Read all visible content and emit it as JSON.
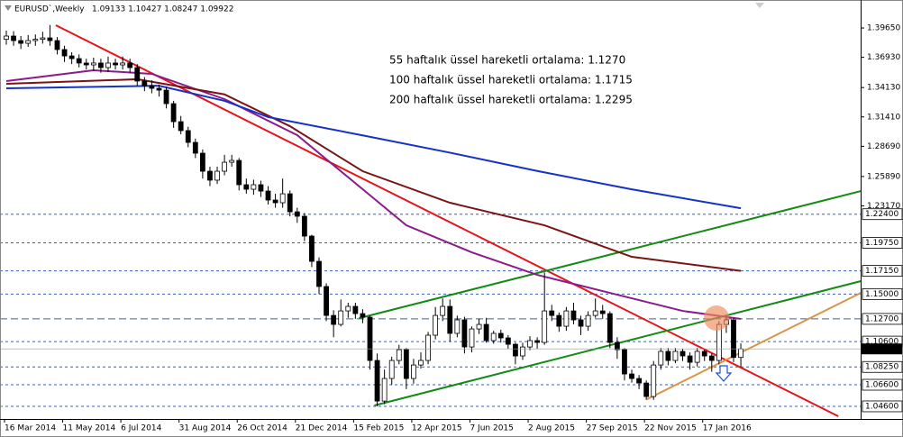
{
  "chart_data": {
    "type": "candlestick",
    "title": "EURUSD`,Weekly",
    "info": "1.09133 1.10427 1.08247 1.09922",
    "categories": [
      "16 Mar 2014",
      null,
      null,
      null,
      null,
      null,
      null,
      null,
      "11 May 2014",
      null,
      null,
      null,
      null,
      null,
      null,
      null,
      "6 Jul 2014",
      null,
      null,
      null,
      null,
      null,
      null,
      null,
      "31 Aug 2014",
      null,
      null,
      null,
      null,
      null,
      null,
      null,
      "26 Oct 2014",
      null,
      null,
      null,
      null,
      null,
      null,
      null,
      "21 Dec 2014",
      null,
      null,
      null,
      null,
      null,
      null,
      null,
      "15 Feb 2015",
      null,
      null,
      null,
      null,
      null,
      null,
      null,
      "12 Apr 2015",
      null,
      null,
      null,
      null,
      null,
      null,
      null,
      "7 Jun 2015",
      null,
      null,
      null,
      null,
      null,
      null,
      null,
      "2 Aug 2015",
      null,
      null,
      null,
      null,
      null,
      null,
      null,
      "27 Sep 2015",
      null,
      null,
      null,
      null,
      null,
      null,
      null,
      "22 Nov 2015",
      null,
      null,
      null,
      null,
      null,
      null,
      null,
      "17 Jan 2016",
      null,
      null,
      null,
      null,
      null
    ],
    "open": [
      1.386,
      1.389,
      1.3848,
      1.3823,
      1.3848,
      1.386,
      1.3873,
      1.3848,
      1.3765,
      1.3706,
      1.3681,
      1.364,
      1.3623,
      1.364,
      1.3598,
      1.364,
      1.3623,
      1.364,
      1.3598,
      1.3473,
      1.3431,
      1.3406,
      1.3389,
      1.3264,
      1.3097,
      1.3014,
      1.2905,
      1.2805,
      1.2638,
      1.2555,
      1.2638,
      1.2721,
      1.2738,
      1.2513,
      1.2471,
      1.2513,
      1.2454,
      1.2371,
      1.2346,
      1.2429,
      1.2262,
      1.2221,
      1.2037,
      1.1803,
      1.157,
      1.1302,
      1.1219,
      1.1344,
      1.1386,
      1.1319,
      1.1286,
      1.0885,
      1.0509,
      1.0718,
      1.0885,
      1.0985,
      1.0718,
      1.0843,
      1.0885,
      1.1119,
      1.1302,
      1.1386,
      1.1136,
      1.1261,
      1.101,
      1.1177,
      1.1219,
      1.1069,
      1.1136,
      1.1094,
      1.1035,
      1.0927,
      1.101,
      1.1069,
      1.1052,
      1.1344,
      1.1302,
      1.1202,
      1.1344,
      1.1261,
      1.1202,
      1.1302,
      1.1344,
      1.1319,
      1.1052,
      1.0985,
      1.076,
      1.0718,
      1.0676,
      1.0551,
      1.0843,
      1.0969,
      1.0885,
      1.0969,
      1.0927,
      1.0868,
      1.0969,
      1.0927,
      1.0885,
      1.1219,
      1.1261,
      1.0913
    ],
    "high": [
      1.394,
      1.3935,
      1.389,
      1.39,
      1.3905,
      1.393,
      1.3993,
      1.388,
      1.38,
      1.374,
      1.372,
      1.368,
      1.369,
      1.368,
      1.37,
      1.368,
      1.37,
      1.368,
      1.363,
      1.351,
      1.348,
      1.344,
      1.342,
      1.329,
      1.315,
      1.305,
      1.294,
      1.284,
      1.268,
      1.268,
      1.279,
      1.279,
      1.276,
      1.257,
      1.256,
      1.255,
      1.25,
      1.243,
      1.257,
      1.246,
      1.23,
      1.225,
      1.205,
      1.184,
      1.16,
      1.135,
      1.145,
      1.142,
      1.142,
      1.136,
      1.13,
      1.095,
      1.08,
      1.092,
      1.103,
      1.1,
      1.09,
      1.096,
      1.115,
      1.138,
      1.146,
      1.145,
      1.13,
      1.129,
      1.12,
      1.127,
      1.128,
      1.116,
      1.117,
      1.112,
      1.105,
      1.105,
      1.111,
      1.11,
      1.17,
      1.14,
      1.133,
      1.138,
      1.142,
      1.13,
      1.134,
      1.146,
      1.14,
      1.134,
      1.11,
      1.1,
      1.08,
      1.075,
      1.07,
      1.088,
      1.1,
      1.1,
      1.1,
      1.099,
      1.096,
      1.1,
      1.099,
      1.095,
      1.125,
      1.13,
      1.128,
      1.1043
    ],
    "low": [
      1.381,
      1.38,
      1.377,
      1.379,
      1.38,
      1.382,
      1.38,
      1.372,
      1.365,
      1.363,
      1.36,
      1.358,
      1.357,
      1.355,
      1.356,
      1.358,
      1.358,
      1.355,
      1.343,
      1.338,
      1.336,
      1.333,
      1.322,
      1.304,
      1.298,
      1.286,
      1.276,
      1.257,
      1.25,
      1.252,
      1.26,
      1.268,
      1.246,
      1.243,
      1.242,
      1.24,
      1.233,
      1.23,
      1.23,
      1.222,
      1.216,
      1.199,
      1.175,
      1.15,
      1.125,
      1.11,
      1.12,
      1.128,
      1.127,
      1.123,
      1.08,
      1.046,
      1.048,
      1.066,
      1.085,
      1.062,
      1.067,
      1.081,
      1.085,
      1.108,
      1.125,
      1.106,
      1.11,
      1.095,
      1.096,
      1.113,
      1.105,
      1.104,
      1.105,
      1.099,
      1.085,
      1.089,
      1.098,
      1.099,
      1.103,
      1.125,
      1.115,
      1.116,
      1.122,
      1.112,
      1.116,
      1.128,
      1.127,
      1.1,
      1.09,
      1.07,
      1.068,
      1.062,
      1.052,
      1.052,
      1.08,
      1.084,
      1.086,
      1.088,
      1.08,
      1.083,
      1.088,
      1.078,
      1.085,
      1.114,
      1.087,
      1.0825
    ],
    "close": [
      1.389,
      1.3848,
      1.3823,
      1.3848,
      1.386,
      1.3873,
      1.3848,
      1.3765,
      1.3706,
      1.3681,
      1.364,
      1.3623,
      1.364,
      1.3598,
      1.364,
      1.3623,
      1.364,
      1.3598,
      1.3473,
      1.3431,
      1.3406,
      1.3389,
      1.3264,
      1.3097,
      1.3014,
      1.2905,
      1.2805,
      1.2638,
      1.2555,
      1.2638,
      1.2721,
      1.2738,
      1.2513,
      1.2471,
      1.2513,
      1.2454,
      1.2371,
      1.2346,
      1.2429,
      1.2262,
      1.2221,
      1.2037,
      1.1803,
      1.157,
      1.1302,
      1.1219,
      1.1344,
      1.1386,
      1.1319,
      1.1286,
      1.0885,
      1.0509,
      1.0718,
      1.0885,
      1.0985,
      1.0718,
      1.0843,
      1.0885,
      1.1119,
      1.1302,
      1.1386,
      1.1136,
      1.1261,
      1.101,
      1.1177,
      1.1219,
      1.1069,
      1.1136,
      1.1094,
      1.1035,
      1.0927,
      1.101,
      1.1069,
      1.1052,
      1.1344,
      1.1302,
      1.1202,
      1.1344,
      1.1261,
      1.1202,
      1.1302,
      1.1344,
      1.1319,
      1.1052,
      1.0985,
      1.076,
      1.0718,
      1.0676,
      1.0551,
      1.0843,
      1.0969,
      1.0885,
      1.0969,
      1.0927,
      1.0868,
      1.0969,
      1.0927,
      1.0885,
      1.1219,
      1.1261,
      1.0913,
      1.0992
    ],
    "up_color": "#ffffff",
    "down_color": "#000000",
    "series": [
      {
        "name": "55 haftalık üssel hareketli ortalama: 1.1270",
        "color": "#8b1a8b",
        "x": [
          0,
          12,
          20,
          30,
          40,
          49,
          55,
          64,
          73,
          83,
          93,
          101
        ],
        "values": [
          1.3473,
          1.3573,
          1.354,
          1.3306,
          1.2972,
          1.2471,
          1.2137,
          1.1887,
          1.1678,
          1.1511,
          1.1344,
          1.127
        ]
      },
      {
        "name": "100  haftalık üssel hareketli ortalama: 1.1715",
        "color": "#7a1414",
        "x": [
          0,
          18,
          30,
          39,
          49,
          61,
          74,
          86,
          101
        ],
        "values": [
          1.3448,
          1.349,
          1.335,
          1.3055,
          1.2638,
          1.2346,
          1.2137,
          1.1845,
          1.1715
        ]
      },
      {
        "name": "200 haftalık üssel hareketli ortalama: 1.2295",
        "color": "#1432c8",
        "x": [
          0,
          21,
          30,
          36,
          49,
          61,
          73,
          86,
          101
        ],
        "values": [
          1.3406,
          1.343,
          1.329,
          1.314,
          1.297,
          1.281,
          1.264,
          1.247,
          1.2295
        ]
      }
    ],
    "trendlines": [
      {
        "color": "#e8141a",
        "x": [
          6.8,
          114.4
        ],
        "y": [
          1.399,
          1.0368
        ]
      },
      {
        "color": "#138a13",
        "x": [
          48.5,
          117.5
        ],
        "y": [
          1.1277,
          1.2454
        ]
      },
      {
        "color": "#138a13",
        "x": [
          50.6,
          117.5
        ],
        "y": [
          1.0468,
          1.162
        ]
      },
      {
        "color": "#d9954a",
        "x": [
          88.1,
          117.5
        ],
        "y": [
          1.0526,
          1.1511
        ]
      }
    ],
    "ylim": [
      1.0343,
      1.4224
    ],
    "yticks": [
      {
        "value": 1.3965,
        "label": "1.39650"
      },
      {
        "value": 1.3693,
        "label": "1.36930"
      },
      {
        "value": 1.3413,
        "label": "1.34130"
      },
      {
        "value": 1.3141,
        "label": "1.31410"
      },
      {
        "value": 1.2869,
        "label": "1.28690"
      },
      {
        "value": 1.2589,
        "label": "1.25890"
      },
      {
        "value": 1.2317,
        "label": "1.23170"
      }
    ],
    "levels_color": "#3b5fb0",
    "levels": [
      {
        "value": 1.224,
        "label": "1.22400"
      },
      {
        "value": 1.1975,
        "label": "1.19750"
      },
      {
        "value": 1.1715,
        "label": "1.17150"
      },
      {
        "value": 1.15,
        "label": "1.15000"
      },
      {
        "value": 1.127,
        "label": "1.12700"
      },
      {
        "value": 1.106,
        "label": "1.10600"
      },
      {
        "value": 1.0825,
        "label": "1.08250"
      },
      {
        "value": 1.066,
        "label": "1.06600"
      },
      {
        "value": 1.046,
        "label": "1.04600"
      }
    ],
    "current": {
      "value": 1.09922,
      "label": "1.09922"
    }
  }
}
